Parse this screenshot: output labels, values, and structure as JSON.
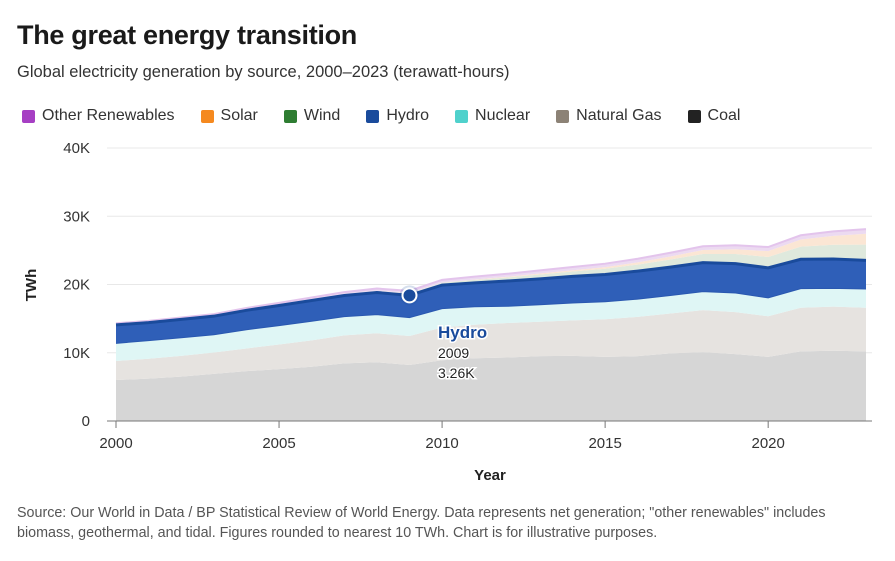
{
  "title": "The great energy transition",
  "subtitle": "Global electricity generation by source, 2000–2023 (terawatt-hours)",
  "footnote": "Source: Our World in Data / BP Statistical Review of World Energy. Data represents net generation; \"other renewables\" includes biomass, geothermal, and tidal. Figures rounded to nearest 10 TWh. Chart is for illustrative purposes.",
  "legend": [
    {
      "label": "Other Renewables",
      "color": "#a63fc3"
    },
    {
      "label": "Solar",
      "color": "#f5891f"
    },
    {
      "label": "Wind",
      "color": "#2e7d32"
    },
    {
      "label": "Hydro",
      "color": "#1a4b9c"
    },
    {
      "label": "Nuclear",
      "color": "#4fd1cc"
    },
    {
      "label": "Natural Gas",
      "color": "#8c8276"
    },
    {
      "label": "Coal",
      "color": "#222222"
    }
  ],
  "tooltip": {
    "series": "Hydro",
    "year": "2009",
    "value": "3.26K"
  },
  "chart_data": {
    "type": "area",
    "stacked": true,
    "title": "The great energy transition",
    "xlabel": "Year",
    "ylabel": "TWh",
    "xlim": [
      2000,
      2023
    ],
    "ylim": [
      0,
      40000
    ],
    "x_ticks": [
      "2000",
      "2005",
      "2010",
      "2015",
      "2020"
    ],
    "y_ticks": [
      "0",
      "10K",
      "20K",
      "30K",
      "40K"
    ],
    "x": [
      2000,
      2001,
      2002,
      2003,
      2004,
      2005,
      2006,
      2007,
      2008,
      2009,
      2010,
      2011,
      2012,
      2013,
      2014,
      2015,
      2016,
      2017,
      2018,
      2019,
      2020,
      2021,
      2022,
      2023
    ],
    "series": [
      {
        "name": "Coal",
        "color": "#d6d6d6",
        "values": [
          6000,
          6200,
          6500,
          6900,
          7300,
          7600,
          7950,
          8450,
          8600,
          8200,
          8900,
          9200,
          9300,
          9500,
          9550,
          9400,
          9500,
          9900,
          10100,
          9800,
          9400,
          10200,
          10300,
          10200
        ]
      },
      {
        "name": "Natural Gas",
        "color": "#e6e3e0",
        "values": [
          2800,
          2920,
          3050,
          3130,
          3330,
          3600,
          3860,
          4100,
          4250,
          4250,
          4800,
          4900,
          5050,
          5050,
          5200,
          5500,
          5750,
          5850,
          6150,
          6150,
          5950,
          6400,
          6450,
          6400
        ]
      },
      {
        "name": "Nuclear",
        "color": "#dff6f5",
        "values": [
          2580,
          2650,
          2640,
          2600,
          2740,
          2770,
          2800,
          2740,
          2730,
          2700,
          2760,
          2640,
          2460,
          2480,
          2540,
          2570,
          2610,
          2640,
          2700,
          2800,
          2690,
          2800,
          2680,
          2740
        ]
      },
      {
        "name": "Hydro",
        "color": "#2f5fb8",
        "values": [
          2700,
          2650,
          2700,
          2730,
          2850,
          2950,
          3050,
          3100,
          3250,
          3260,
          3450,
          3500,
          3700,
          3800,
          3900,
          4000,
          4100,
          4150,
          4250,
          4300,
          4400,
          4300,
          4300,
          4200
        ]
      },
      {
        "name": "Wind",
        "color": "#dfe9dd",
        "values": [
          30,
          40,
          50,
          60,
          80,
          100,
          130,
          170,
          220,
          280,
          340,
          440,
          520,
          640,
          710,
          830,
          960,
          1130,
          1270,
          1420,
          1590,
          1850,
          2100,
          2300
        ]
      },
      {
        "name": "Solar",
        "color": "#fbe6d4",
        "values": [
          5,
          5,
          5,
          5,
          5,
          5,
          5,
          10,
          20,
          20,
          30,
          60,
          100,
          140,
          190,
          250,
          330,
          440,
          580,
          700,
          860,
          1040,
          1300,
          1600
        ]
      },
      {
        "name": "Other Renewables",
        "color": "#ecdaf1",
        "values": [
          200,
          210,
          220,
          240,
          260,
          280,
          300,
          320,
          340,
          360,
          400,
          420,
          440,
          460,
          480,
          500,
          520,
          540,
          560,
          580,
          600,
          620,
          650,
          680
        ]
      }
    ]
  }
}
